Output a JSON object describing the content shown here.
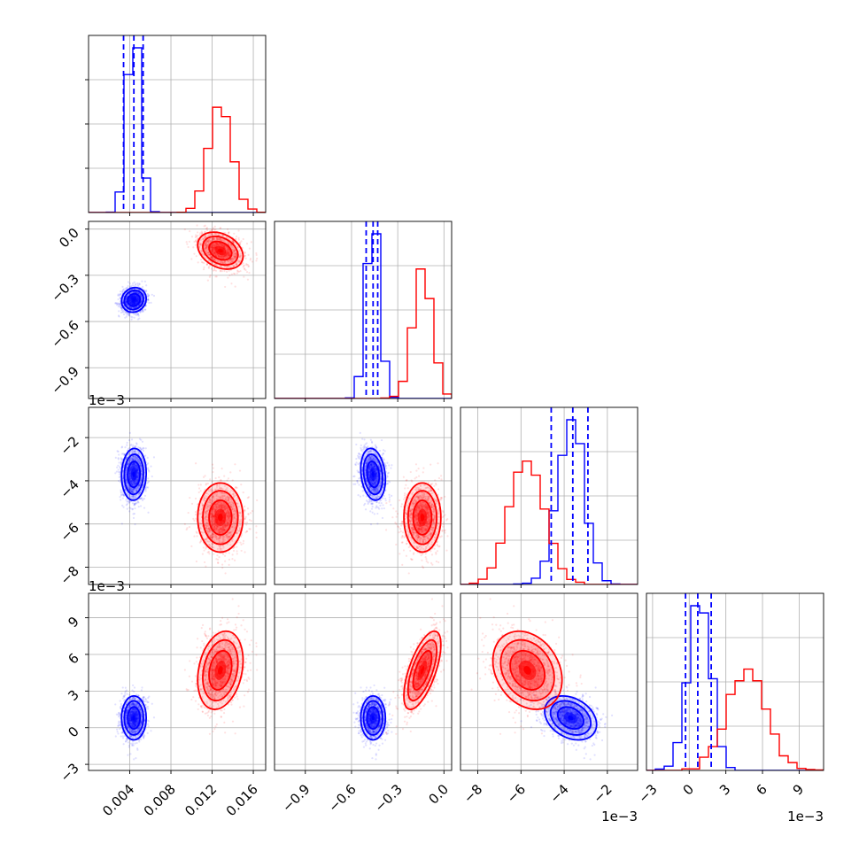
{
  "chart_data": {
    "type": "corner",
    "params": [
      {
        "ticks": [
          0.004,
          0.008,
          0.012,
          0.016
        ],
        "labels": [
          "0.004",
          "0.008",
          "0.012",
          "0.016"
        ],
        "range": [
          0.0,
          0.0172
        ],
        "offset": ""
      },
      {
        "ticks": [
          -0.9,
          -0.6,
          -0.3,
          0.0
        ],
        "labels": [
          "−0.9",
          "−0.6",
          "−0.3",
          "0.0"
        ],
        "range": [
          -1.1,
          0.05
        ],
        "offset": ""
      },
      {
        "ticks": [
          -8,
          -6,
          -4,
          -2
        ],
        "labels": [
          "−8",
          "−6",
          "−4",
          "−2"
        ],
        "range": [
          -8.8,
          -0.6
        ],
        "offset": "1e−3"
      },
      {
        "ticks": [
          -3,
          0,
          3,
          6,
          9
        ],
        "labels": [
          "−3",
          "0",
          "3",
          "6",
          "9"
        ],
        "range": [
          -3.5,
          11.0
        ],
        "offset": "1e−3"
      }
    ],
    "series": [
      {
        "color": "#0000ff",
        "mean": [
          0.0044,
          -0.46,
          -3.7,
          0.8
        ],
        "sd": [
          0.0006,
          0.04,
          0.6,
          0.9
        ],
        "quantile_lines": [
          [
            0.0034,
            0.0044,
            0.0053
          ],
          [
            -0.505,
            -0.46,
            -0.43
          ],
          [
            -4.6,
            -3.6,
            -2.9
          ],
          [
            -0.3,
            0.7,
            1.8
          ]
        ]
      },
      {
        "color": "#ff0000",
        "mean": [
          0.0128,
          -0.14,
          -5.7,
          4.7
        ],
        "sd": [
          0.0011,
          0.06,
          0.8,
          1.6
        ],
        "quantile_lines": []
      }
    ]
  }
}
